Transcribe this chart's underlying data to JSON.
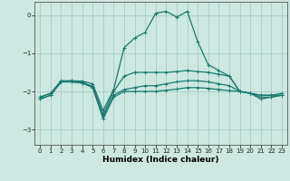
{
  "xlabel": "Humidex (Indice chaleur)",
  "bg_color": "#cce8e0",
  "grid_color": "#a0c8be",
  "line_color": "#1a7a6e",
  "xlim": [
    -0.5,
    23.5
  ],
  "ylim": [
    -3.4,
    0.35
  ],
  "yticks": [
    0,
    -1,
    -2,
    -3
  ],
  "xticks": [
    0,
    1,
    2,
    3,
    4,
    5,
    6,
    7,
    8,
    9,
    10,
    11,
    12,
    13,
    14,
    15,
    16,
    17,
    18,
    19,
    20,
    21,
    22,
    23
  ],
  "series": [
    {
      "x": [
        0,
        1,
        2,
        3,
        4,
        5,
        6,
        7,
        8,
        9,
        10,
        11,
        12,
        13,
        14,
        15,
        16,
        17,
        18,
        19,
        20,
        21,
        22,
        23
      ],
      "y": [
        -2.15,
        -2.05,
        -1.75,
        -1.72,
        -1.73,
        -1.8,
        -2.5,
        -1.95,
        -0.85,
        -0.6,
        -0.45,
        0.05,
        0.1,
        -0.05,
        0.1,
        -0.7,
        -1.3,
        -1.45,
        -1.6,
        -2.0,
        -2.05,
        -2.1,
        -2.1,
        -2.05
      ]
    },
    {
      "x": [
        0,
        1,
        2,
        3,
        4,
        5,
        6,
        7,
        8,
        9,
        10,
        11,
        12,
        13,
        14,
        15,
        16,
        17,
        18,
        19,
        20,
        21,
        22,
        23
      ],
      "y": [
        -2.15,
        -2.05,
        -1.72,
        -1.72,
        -1.76,
        -1.87,
        -2.6,
        -2.0,
        -1.6,
        -1.5,
        -1.5,
        -1.5,
        -1.5,
        -1.48,
        -1.45,
        -1.48,
        -1.5,
        -1.55,
        -1.6,
        -2.0,
        -2.05,
        -2.1,
        -2.1,
        -2.1
      ]
    },
    {
      "x": [
        0,
        1,
        2,
        3,
        4,
        5,
        6,
        7,
        8,
        9,
        10,
        11,
        12,
        13,
        14,
        15,
        16,
        17,
        18,
        19,
        20,
        21,
        22,
        23
      ],
      "y": [
        -2.2,
        -2.1,
        -1.75,
        -1.75,
        -1.78,
        -1.87,
        -2.65,
        -2.1,
        -1.95,
        -1.9,
        -1.85,
        -1.85,
        -1.8,
        -1.75,
        -1.72,
        -1.72,
        -1.75,
        -1.8,
        -1.85,
        -2.0,
        -2.05,
        -2.15,
        -2.15,
        -2.1
      ]
    },
    {
      "x": [
        0,
        1,
        2,
        3,
        4,
        5,
        6,
        7,
        8,
        9,
        10,
        11,
        12,
        13,
        14,
        15,
        16,
        17,
        18,
        19,
        20,
        21,
        22,
        23
      ],
      "y": [
        -2.2,
        -2.1,
        -1.75,
        -1.75,
        -1.78,
        -1.9,
        -2.72,
        -2.15,
        -2.0,
        -2.0,
        -2.0,
        -2.0,
        -1.97,
        -1.94,
        -1.9,
        -1.9,
        -1.92,
        -1.95,
        -1.98,
        -2.0,
        -2.05,
        -2.2,
        -2.15,
        -2.1
      ]
    }
  ]
}
